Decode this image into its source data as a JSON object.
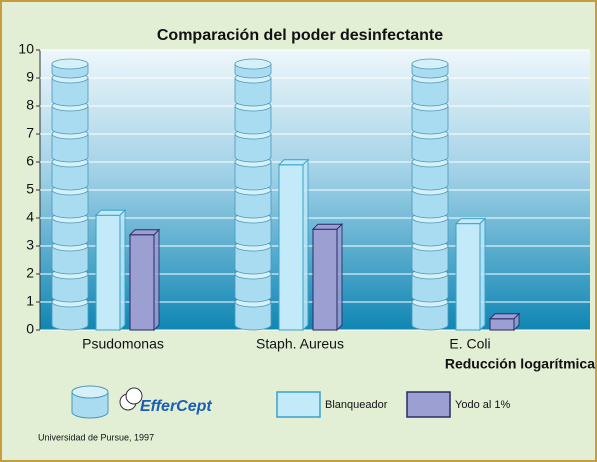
{
  "chart_data": {
    "type": "bar",
    "title": "Comparación del poder desinfectante",
    "categories": [
      "Psudomonas",
      "Staph. Aureus",
      "E. Coli"
    ],
    "series": [
      {
        "name": "EfferCept",
        "color": "#a9dcf0",
        "values": [
          9.5,
          9.5,
          9.5
        ]
      },
      {
        "name": "Blanqueador",
        "color": "#c2eaf8",
        "values": [
          4.1,
          5.9,
          3.8
        ]
      },
      {
        "name": "Yodo al 1%",
        "color": "#9c9fd2",
        "values": [
          3.4,
          3.6,
          0.4
        ]
      }
    ],
    "ylim": [
      0,
      10
    ],
    "yticks": [
      0,
      1,
      2,
      3,
      4,
      5,
      6,
      7,
      8,
      9,
      10
    ],
    "grid": true,
    "x_label": "Reducción logarítmica",
    "source": "Universidad de Pursue, 1997"
  }
}
